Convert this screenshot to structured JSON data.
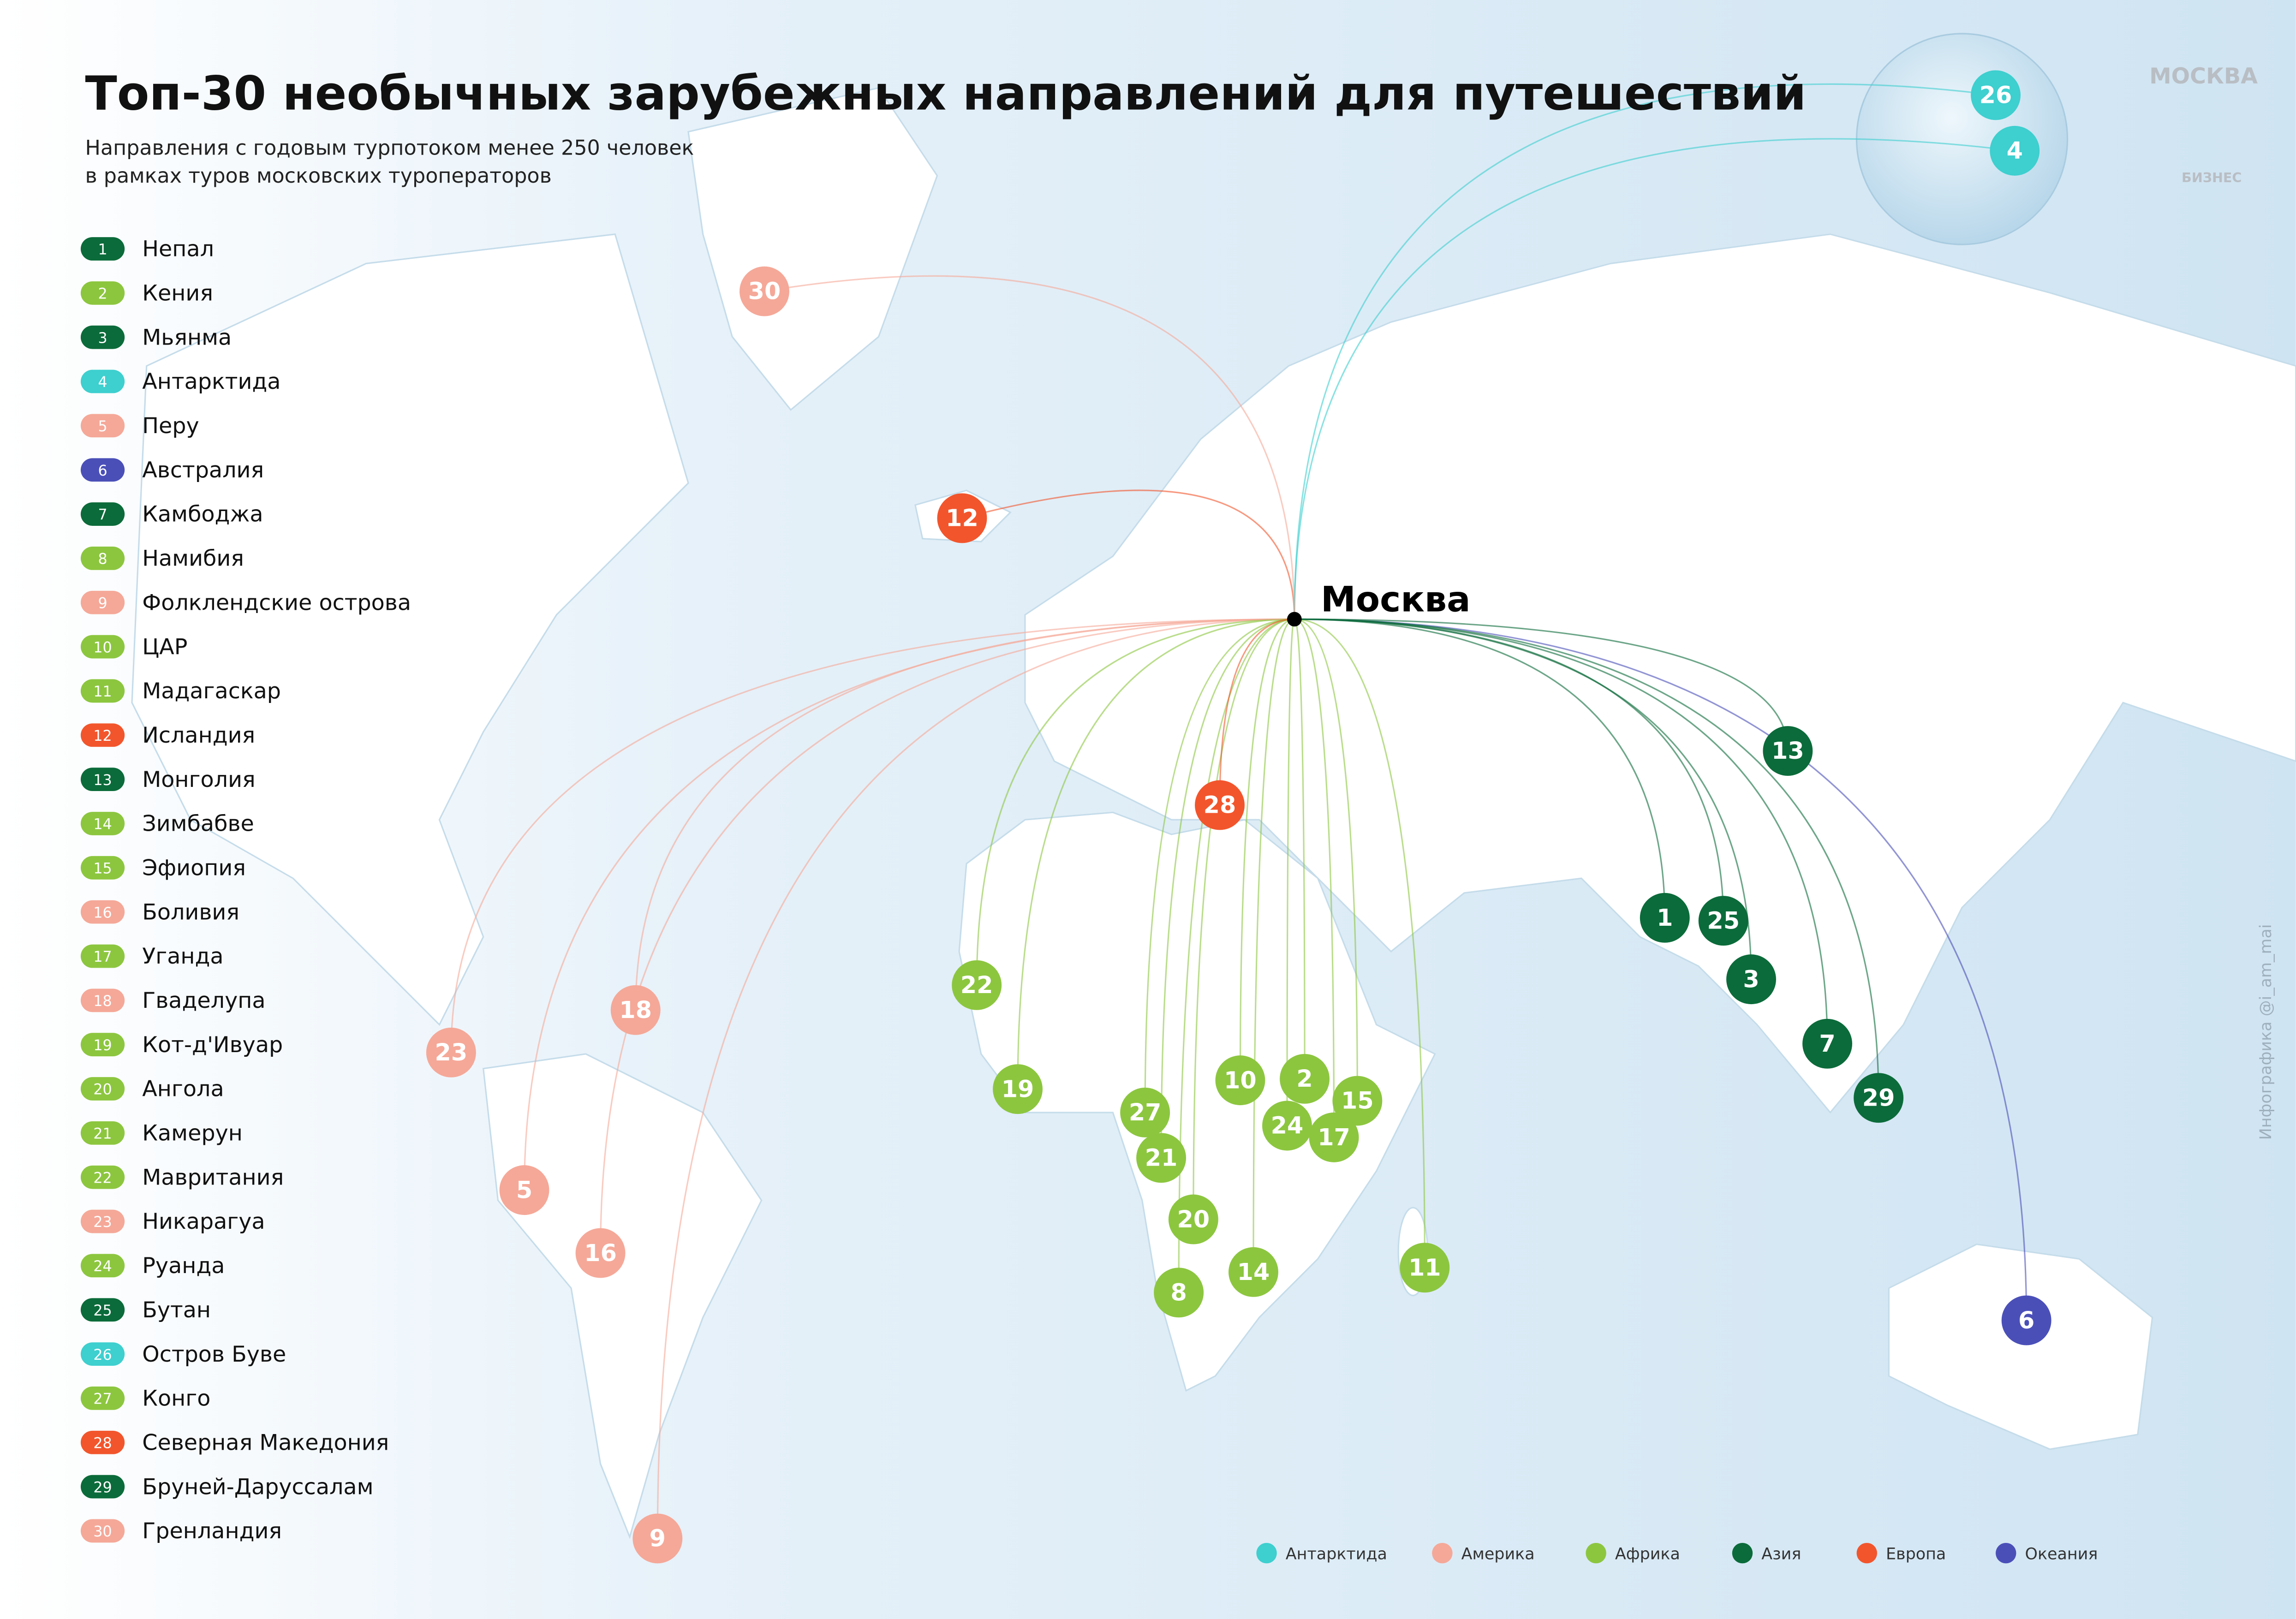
{
  "header": {
    "title": "Топ-30 необычных зарубежных направлений для путешествий",
    "subtitle": [
      "Направления с годовым турпотоком менее 250 человек",
      "в рамках туров московских туроператоров"
    ]
  },
  "origin": "Москва",
  "regions": [
    {
      "name": "Антарктида",
      "color": "#3ecfcf"
    },
    {
      "name": "Америка",
      "color": "#f5a898"
    },
    {
      "name": "Африка",
      "color": "#8cc63f"
    },
    {
      "name": "Азия",
      "color": "#0b6b3a"
    },
    {
      "name": "Европа",
      "color": "#f2552c"
    },
    {
      "name": "Океания",
      "color": "#4a4fb8"
    }
  ],
  "items": [
    {
      "number": 1,
      "name": "Непал",
      "region": "Азия"
    },
    {
      "number": 2,
      "name": "Кения",
      "region": "Африка"
    },
    {
      "number": 3,
      "name": "Мьянма",
      "region": "Азия"
    },
    {
      "number": 4,
      "name": "Антарктида",
      "region": "Антарктида"
    },
    {
      "number": 5,
      "name": "Перу",
      "region": "Америка"
    },
    {
      "number": 6,
      "name": "Австралия",
      "region": "Океания"
    },
    {
      "number": 7,
      "name": "Камбоджа",
      "region": "Азия"
    },
    {
      "number": 8,
      "name": "Намибия",
      "region": "Африка"
    },
    {
      "number": 9,
      "name": "Фолклендские острова",
      "region": "Америка"
    },
    {
      "number": 10,
      "name": "ЦАР",
      "region": "Африка"
    },
    {
      "number": 11,
      "name": "Мадагаскар",
      "region": "Африка"
    },
    {
      "number": 12,
      "name": "Исландия",
      "region": "Европа"
    },
    {
      "number": 13,
      "name": "Монголия",
      "region": "Азия"
    },
    {
      "number": 14,
      "name": "Зимбабве",
      "region": "Африка"
    },
    {
      "number": 15,
      "name": "Эфиопия",
      "region": "Африка"
    },
    {
      "number": 16,
      "name": "Боливия",
      "region": "Америка"
    },
    {
      "number": 17,
      "name": "Уганда",
      "region": "Африка"
    },
    {
      "number": 18,
      "name": "Гваделупа",
      "region": "Америка"
    },
    {
      "number": 19,
      "name": "Кот-д'Ивуар",
      "region": "Африка"
    },
    {
      "number": 20,
      "name": "Ангола",
      "region": "Африка"
    },
    {
      "number": 21,
      "name": "Камерун",
      "region": "Африка"
    },
    {
      "number": 22,
      "name": "Мавритания",
      "region": "Африка"
    },
    {
      "number": 23,
      "name": "Никарагуа",
      "region": "Америка"
    },
    {
      "number": 24,
      "name": "Руанда",
      "region": "Африка"
    },
    {
      "number": 25,
      "name": "Бутан",
      "region": "Азия"
    },
    {
      "number": 26,
      "name": "Остров Буве",
      "region": "Антарктида"
    },
    {
      "number": 27,
      "name": "Конго",
      "region": "Африка"
    },
    {
      "number": 28,
      "name": "Северная Македония",
      "region": "Европа"
    },
    {
      "number": 29,
      "name": "Бруней-Даруссалам",
      "region": "Азия"
    },
    {
      "number": 30,
      "name": "Гренландия",
      "region": "Америка"
    }
  ],
  "logos": [
    "МОСКВА",
    "БИЗНЕС"
  ],
  "credit": "Инфографика @i_am_mai"
}
